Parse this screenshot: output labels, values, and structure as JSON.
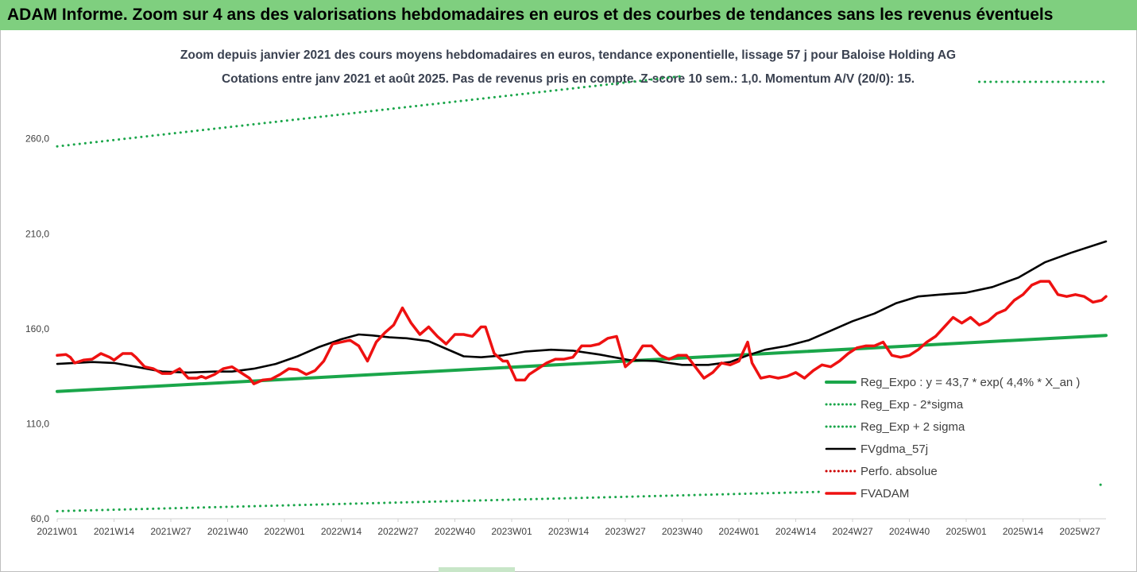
{
  "banner": {
    "title": "ADAM Informe. Zoom sur 4 ans des valorisations hebdomadaires en euros et des courbes de tendances sans les revenus éventuels"
  },
  "colors": {
    "banner_bg": "#7fcf7f",
    "trend": "#1aa64a",
    "sigma": "#1aa64a",
    "smooth": "#000000",
    "price": "#ee1111",
    "perf": "#cc0000"
  },
  "chart_data": {
    "type": "line",
    "title": "Zoom depuis janvier 2021 des cours moyens hebdomadaires en euros, tendance exponentielle, lissage 57 j pour Baloise Holding AG",
    "subtitle": "Cotations entre janv 2021 et août 2025.  Pas de revenus pris en compte. Z-score 10 sem.: 1,0. Momentum A/V (20/0): 15.",
    "ylim": [
      60,
      290
    ],
    "yticks": [
      60,
      110,
      160,
      210,
      260
    ],
    "ytick_labels": [
      "60,0",
      "110,0",
      "160,0",
      "210,0",
      "260,0"
    ],
    "x_week_range": [
      0,
      240
    ],
    "xticks": [
      {
        "label": "2021W01",
        "week": 0
      },
      {
        "label": "2021W14",
        "week": 13
      },
      {
        "label": "2021W27",
        "week": 26
      },
      {
        "label": "2021W40",
        "week": 39
      },
      {
        "label": "2022W01",
        "week": 52
      },
      {
        "label": "2022W14",
        "week": 65
      },
      {
        "label": "2022W27",
        "week": 78
      },
      {
        "label": "2022W40",
        "week": 91
      },
      {
        "label": "2023W01",
        "week": 104
      },
      {
        "label": "2023W14",
        "week": 117
      },
      {
        "label": "2023W27",
        "week": 130
      },
      {
        "label": "2023W40",
        "week": 143
      },
      {
        "label": "2024W01",
        "week": 156
      },
      {
        "label": "2024W14",
        "week": 169
      },
      {
        "label": "2024W27",
        "week": 182
      },
      {
        "label": "2024W40",
        "week": 195
      },
      {
        "label": "2025W01",
        "week": 208
      },
      {
        "label": "2025W14",
        "week": 221
      },
      {
        "label": "2025W27",
        "week": 234
      }
    ],
    "grid": false,
    "legend_position": "bottom-right",
    "series": [
      {
        "name": "Reg_Expo : y = 43,7 * exp( 4,4% *  X_an )",
        "style": "solid-thick",
        "color": "#1aa64a",
        "points": [
          [
            0,
            127
          ],
          [
            240,
            156.5
          ]
        ]
      },
      {
        "name": "Reg_Exp - 2*sigma",
        "style": "dotted",
        "color": "#1aa64a",
        "points": [
          [
            0,
            64
          ],
          [
            240,
            78
          ]
        ]
      },
      {
        "name": "Reg_Exp + 2 sigma",
        "style": "dotted",
        "color": "#1aa64a",
        "points": [
          [
            0,
            256
          ],
          [
            143,
            293
          ]
        ],
        "segment2": [
          [
            211,
            290
          ],
          [
            240,
            290
          ]
        ]
      },
      {
        "name": "FVgdma_57j",
        "style": "solid",
        "color": "#000000",
        "points": [
          [
            0,
            141.5
          ],
          [
            8,
            142.5
          ],
          [
            13,
            142
          ],
          [
            18,
            140
          ],
          [
            24,
            137.5
          ],
          [
            30,
            137
          ],
          [
            36,
            137.5
          ],
          [
            40,
            137.5
          ],
          [
            45,
            139
          ],
          [
            50,
            141.5
          ],
          [
            55,
            145.5
          ],
          [
            60,
            150.5
          ],
          [
            65,
            154.5
          ],
          [
            69,
            157
          ],
          [
            72,
            156.5
          ],
          [
            76,
            155.5
          ],
          [
            80,
            155
          ],
          [
            85,
            153.5
          ],
          [
            89,
            149.5
          ],
          [
            93,
            145.5
          ],
          [
            97,
            145
          ],
          [
            102,
            146
          ],
          [
            107,
            148
          ],
          [
            113,
            149
          ],
          [
            118,
            148.5
          ],
          [
            124,
            146.5
          ],
          [
            131,
            143.5
          ],
          [
            137,
            143
          ],
          [
            143,
            141
          ],
          [
            149,
            141
          ],
          [
            154,
            142.5
          ],
          [
            158,
            146
          ],
          [
            162,
            149
          ],
          [
            167,
            151
          ],
          [
            172,
            154
          ],
          [
            177,
            159
          ],
          [
            182,
            164
          ],
          [
            187,
            168
          ],
          [
            192,
            173.5
          ],
          [
            197,
            177
          ],
          [
            202,
            178
          ],
          [
            208,
            179
          ],
          [
            214,
            182
          ],
          [
            220,
            187
          ],
          [
            226,
            195
          ],
          [
            232,
            200
          ],
          [
            240,
            206
          ]
        ]
      },
      {
        "name": "Perfo. absolue",
        "style": "dotted",
        "color": "#cc0000",
        "points": []
      },
      {
        "name": "FVADAM",
        "style": "solid-thick",
        "color": "#ee1111",
        "points": [
          [
            0,
            146
          ],
          [
            2,
            146.5
          ],
          [
            3,
            145
          ],
          [
            4,
            142
          ],
          [
            6,
            143.5
          ],
          [
            8,
            144
          ],
          [
            10,
            147
          ],
          [
            12,
            145
          ],
          [
            13,
            143.5
          ],
          [
            15,
            147
          ],
          [
            17,
            147
          ],
          [
            18,
            145
          ],
          [
            20,
            140
          ],
          [
            22,
            139
          ],
          [
            24,
            136.5
          ],
          [
            26,
            136.5
          ],
          [
            28,
            139
          ],
          [
            30,
            134
          ],
          [
            32,
            134
          ],
          [
            33,
            135
          ],
          [
            34,
            134
          ],
          [
            36,
            136
          ],
          [
            38,
            139
          ],
          [
            40,
            140
          ],
          [
            42,
            137
          ],
          [
            44,
            134
          ],
          [
            45,
            131
          ],
          [
            47,
            133
          ],
          [
            49,
            133.5
          ],
          [
            51,
            136
          ],
          [
            53,
            139
          ],
          [
            55,
            138.5
          ],
          [
            57,
            136
          ],
          [
            59,
            138
          ],
          [
            61,
            143
          ],
          [
            63,
            152
          ],
          [
            65,
            153
          ],
          [
            67,
            154
          ],
          [
            69,
            151
          ],
          [
            71,
            143
          ],
          [
            73,
            153
          ],
          [
            75,
            158
          ],
          [
            77,
            162
          ],
          [
            79,
            171
          ],
          [
            81,
            163
          ],
          [
            83,
            157
          ],
          [
            85,
            161
          ],
          [
            87,
            156
          ],
          [
            89,
            152
          ],
          [
            91,
            157
          ],
          [
            93,
            157
          ],
          [
            95,
            156
          ],
          [
            97,
            161
          ],
          [
            98,
            161
          ],
          [
            100,
            147
          ],
          [
            102,
            143
          ],
          [
            103,
            143
          ],
          [
            105,
            133
          ],
          [
            107,
            133
          ],
          [
            108,
            136
          ],
          [
            110,
            139
          ],
          [
            112,
            142
          ],
          [
            114,
            144
          ],
          [
            116,
            144
          ],
          [
            118,
            145
          ],
          [
            120,
            151
          ],
          [
            122,
            151
          ],
          [
            124,
            152
          ],
          [
            126,
            155
          ],
          [
            128,
            156
          ],
          [
            130,
            140
          ],
          [
            132,
            144
          ],
          [
            134,
            151
          ],
          [
            136,
            151
          ],
          [
            138,
            146
          ],
          [
            140,
            144
          ],
          [
            142,
            146
          ],
          [
            144,
            146
          ],
          [
            146,
            140
          ],
          [
            148,
            134
          ],
          [
            150,
            137
          ],
          [
            152,
            142
          ],
          [
            154,
            141
          ],
          [
            156,
            143
          ],
          [
            158,
            153
          ],
          [
            159,
            142
          ],
          [
            161,
            134
          ],
          [
            163,
            135
          ],
          [
            165,
            134
          ],
          [
            167,
            135
          ],
          [
            169,
            137
          ],
          [
            171,
            134
          ],
          [
            173,
            138
          ],
          [
            175,
            141
          ],
          [
            177,
            140
          ],
          [
            179,
            143
          ],
          [
            181,
            147
          ],
          [
            183,
            150
          ],
          [
            185,
            151
          ],
          [
            187,
            151
          ],
          [
            189,
            153
          ],
          [
            191,
            146
          ],
          [
            193,
            145
          ],
          [
            195,
            146
          ],
          [
            197,
            149
          ],
          [
            199,
            153
          ],
          [
            201,
            156
          ],
          [
            203,
            161
          ],
          [
            205,
            166
          ],
          [
            207,
            163
          ],
          [
            209,
            166
          ],
          [
            211,
            162
          ],
          [
            213,
            164
          ],
          [
            215,
            168
          ],
          [
            217,
            170
          ],
          [
            219,
            175
          ],
          [
            221,
            178
          ],
          [
            223,
            183
          ],
          [
            225,
            185
          ],
          [
            227,
            185
          ],
          [
            229,
            178
          ],
          [
            231,
            177
          ],
          [
            233,
            178
          ],
          [
            235,
            177
          ],
          [
            237,
            174
          ],
          [
            239,
            175
          ],
          [
            240,
            177
          ]
        ]
      }
    ]
  }
}
